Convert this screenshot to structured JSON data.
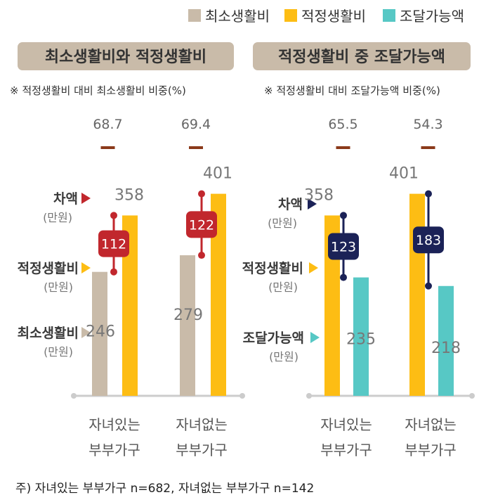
{
  "legend": [
    {
      "label": "최소생활비",
      "color": "#c9bba9"
    },
    {
      "label": "적정생활비",
      "color": "#fdbd14"
    },
    {
      "label": "조달가능액",
      "color": "#57c8c5"
    }
  ],
  "footnote": "주) 자녀있는 부부가구 n=682, 자녀없는 부부가구 n=142",
  "chart_data": [
    {
      "type": "bar",
      "title": "최소생활비와 적정생활비",
      "ratio_note": "※ 적정생활비 대비 최소생활비 비중(%)",
      "categories": [
        [
          "자녀있는",
          "부부가구"
        ],
        [
          "자녀없는",
          "부부가구"
        ]
      ],
      "series": [
        {
          "name": "최소생활비",
          "values": [
            246,
            279
          ],
          "labels": [
            "246",
            "279"
          ],
          "color": "#c9bba9"
        },
        {
          "name": "적정생활비",
          "values": [
            358,
            401
          ],
          "labels": [
            "358",
            "401"
          ],
          "color": "#fdbd14"
        }
      ],
      "ratio": [
        68.7,
        69.4
      ],
      "ratio_labels": [
        "68.7",
        "69.4"
      ],
      "difference": [
        112,
        122
      ],
      "difference_labels": [
        "112",
        "122"
      ],
      "difference_color": "#c1272d",
      "side_labels": [
        {
          "main": "차액",
          "sub": "(만원)",
          "marker_color": "#c1272d"
        },
        {
          "main": "적정생활비",
          "sub": "(만원)",
          "marker_color": "#fdbd14"
        },
        {
          "main": "최소생활비",
          "sub": "(만원)",
          "marker_color": "#c9bba9"
        }
      ],
      "ylim": [
        0,
        420
      ]
    },
    {
      "type": "bar",
      "title": "적정생활비 중 조달가능액",
      "ratio_note": "※ 적정생활비 대비 조달가능액 비중(%)",
      "categories": [
        [
          "자녀있는",
          "부부가구"
        ],
        [
          "자녀없는",
          "부부가구"
        ]
      ],
      "series": [
        {
          "name": "적정생활비",
          "values": [
            358,
            401
          ],
          "labels": [
            "358",
            "401"
          ],
          "color": "#fdbd14"
        },
        {
          "name": "조달가능액",
          "values": [
            235,
            218
          ],
          "labels": [
            "235",
            "218"
          ],
          "color": "#57c8c5"
        }
      ],
      "ratio": [
        65.5,
        54.3
      ],
      "ratio_labels": [
        "65.5",
        "54.3"
      ],
      "difference": [
        123,
        183
      ],
      "difference_labels": [
        "123",
        "183"
      ],
      "difference_color": "#1b2257",
      "side_labels": [
        {
          "main": "차액",
          "sub": "(만원)",
          "marker_color": "#1b2257"
        },
        {
          "main": "적정생활비",
          "sub": "(만원)",
          "marker_color": "#fdbd14"
        },
        {
          "main": "조달가능액",
          "sub": "(만원)",
          "marker_color": "#57c8c5"
        }
      ],
      "ylim": [
        0,
        420
      ]
    }
  ]
}
